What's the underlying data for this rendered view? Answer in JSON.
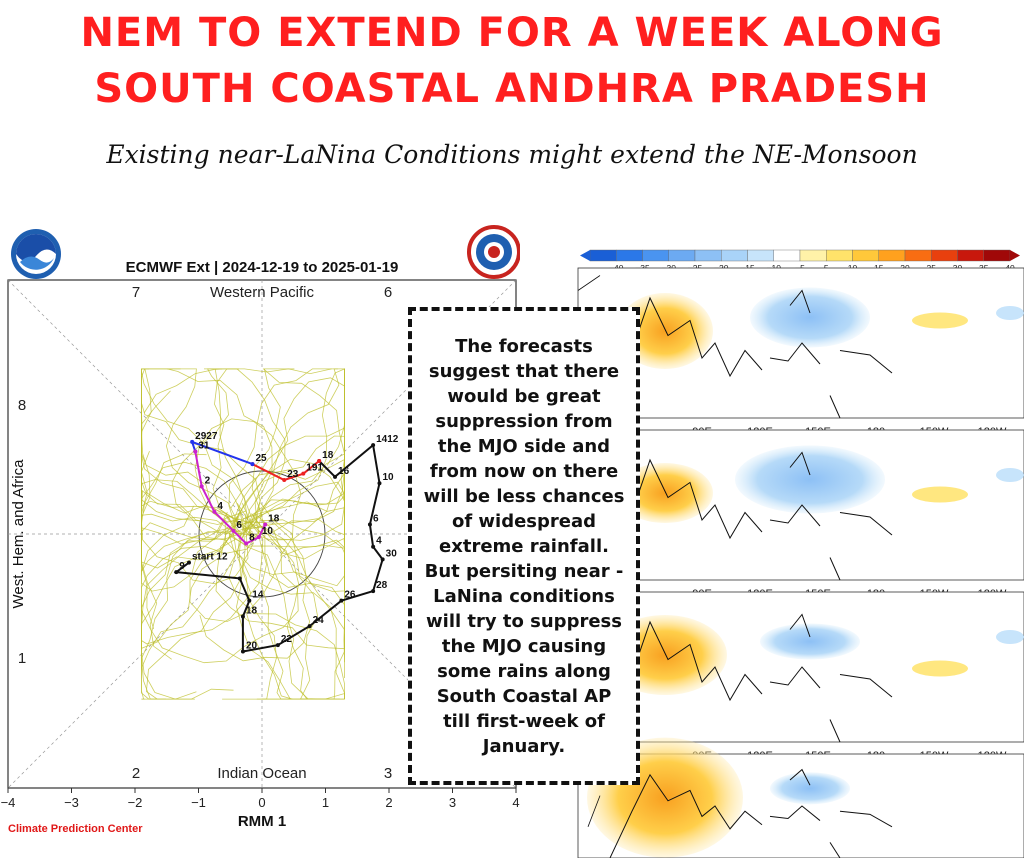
{
  "headline": {
    "line1": "NEM TO EXTEND FOR A WEEK ALONG",
    "line2": "SOUTH COASTAL ANDHRA PRADESH"
  },
  "subtitle": "Existing near-LaNina Conditions might extend the NE-Monsoon",
  "phase_diagram": {
    "title": "ECMWF Ext | 2024-12-19 to 2025-01-19",
    "xlabel": "RMM 1",
    "ylabel": "West. Hem. and Africa",
    "region_top": "Western Pacific",
    "region_bottom": "Indian Ocean",
    "phase_labels": [
      "7",
      "6",
      "8",
      "1",
      "2",
      "3"
    ],
    "x_ticks": [
      "−4",
      "−3",
      "−2",
      "−1",
      "0",
      "1",
      "2",
      "3",
      "4"
    ],
    "credit": "Climate Prediction Center",
    "colors": {
      "ensemble": "#bdbf2a",
      "observed": "#111111",
      "forecast_blue": "#2233ee",
      "forecast_red": "#ee2222",
      "forecast_magenta": "#cc22cc",
      "credit": "#e01818"
    }
  },
  "trajectory": {
    "observed": [
      {
        "rmm1": -1.15,
        "rmm2": -0.45,
        "label": "start 12"
      },
      {
        "rmm1": -1.35,
        "rmm2": -0.6,
        "label": "9"
      },
      {
        "rmm1": -0.35,
        "rmm2": -0.7,
        "label": ""
      },
      {
        "rmm1": -0.2,
        "rmm2": -1.05,
        "label": "14"
      },
      {
        "rmm1": -0.3,
        "rmm2": -1.3,
        "label": "18"
      },
      {
        "rmm1": -0.3,
        "rmm2": -1.85,
        "label": "20"
      },
      {
        "rmm1": 0.25,
        "rmm2": -1.75,
        "label": "22"
      },
      {
        "rmm1": 0.75,
        "rmm2": -1.45,
        "label": "24"
      },
      {
        "rmm1": 1.25,
        "rmm2": -1.05,
        "label": "26"
      },
      {
        "rmm1": 1.75,
        "rmm2": -0.9,
        "label": "28"
      },
      {
        "rmm1": 1.9,
        "rmm2": -0.4,
        "label": "30"
      },
      {
        "rmm1": 1.75,
        "rmm2": -0.2,
        "label": "4"
      },
      {
        "rmm1": 1.7,
        "rmm2": 0.15,
        "label": "6"
      },
      {
        "rmm1": 1.85,
        "rmm2": 0.8,
        "label": "10"
      },
      {
        "rmm1": 1.75,
        "rmm2": 1.4,
        "label": "1412"
      },
      {
        "rmm1": 1.15,
        "rmm2": 0.9,
        "label": "16"
      },
      {
        "rmm1": 0.9,
        "rmm2": 1.15,
        "label": "18"
      }
    ],
    "forecast_red": [
      {
        "rmm1": 0.9,
        "rmm2": 1.15,
        "label": ""
      },
      {
        "rmm1": 0.65,
        "rmm2": 0.95,
        "label": "191"
      },
      {
        "rmm1": 0.35,
        "rmm2": 0.85,
        "label": "23"
      },
      {
        "rmm1": -0.15,
        "rmm2": 1.1,
        "label": "25"
      }
    ],
    "forecast_blue": [
      {
        "rmm1": -0.15,
        "rmm2": 1.1,
        "label": ""
      },
      {
        "rmm1": -1.1,
        "rmm2": 1.45,
        "label": "2927"
      },
      {
        "rmm1": -1.05,
        "rmm2": 1.3,
        "label": "31"
      }
    ],
    "forecast_magenta": [
      {
        "rmm1": -1.05,
        "rmm2": 1.3,
        "label": ""
      },
      {
        "rmm1": -0.95,
        "rmm2": 0.75,
        "label": "2"
      },
      {
        "rmm1": -0.75,
        "rmm2": 0.35,
        "label": "4"
      },
      {
        "rmm1": -0.45,
        "rmm2": 0.05,
        "label": "6"
      },
      {
        "rmm1": -0.25,
        "rmm2": -0.15,
        "label": "8"
      },
      {
        "rmm1": -0.05,
        "rmm2": -0.05,
        "label": "10"
      },
      {
        "rmm1": 0.05,
        "rmm2": 0.15,
        "label": "18"
      }
    ]
  },
  "callout_text": "The forecasts suggest that there would be great suppression from the MJO side and from now on there will be less chances of widespread extreme rainfall. But persiting near - LaNina conditions will try to suppress the MJO causing some rains along South Coastal AP till first-week of January.",
  "anomaly_maps": {
    "colorbar_ticks": [
      "−40",
      "−35",
      "−30",
      "−25",
      "−20",
      "−15",
      "−10",
      "−5",
      "5",
      "10",
      "15",
      "20",
      "25",
      "30",
      "35",
      "40"
    ],
    "colorbar_colors": [
      "#1a5fd6",
      "#2b78e8",
      "#4a94f0",
      "#6caaf2",
      "#8dc0f5",
      "#a9d3f8",
      "#c7e4fb",
      "#ffffff",
      "#fff2a8",
      "#ffe36a",
      "#ffc83a",
      "#ffa11e",
      "#f86d12",
      "#e8400e",
      "#c8180c",
      "#a00808"
    ],
    "lon_labels": [
      "90E",
      "120E",
      "150E",
      "180",
      "150W",
      "120W"
    ],
    "panel_count": 4
  }
}
